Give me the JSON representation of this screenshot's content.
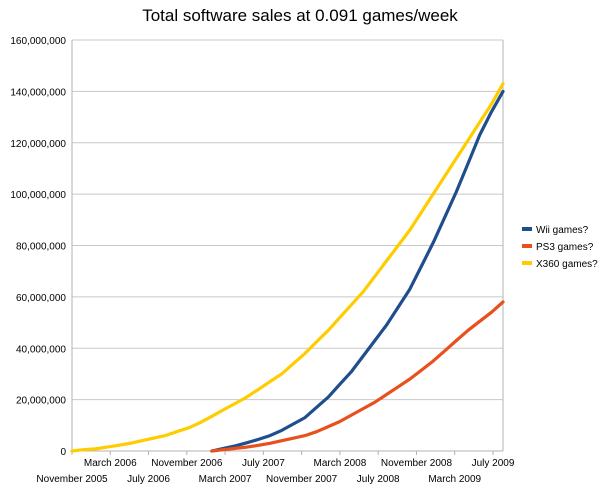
{
  "chart_data": {
    "type": "line",
    "title": "Total software sales at 0.091 games/week",
    "xlabel": "",
    "ylabel": "",
    "ylim": [
      0,
      160000000
    ],
    "y_ticks": [
      0,
      20000000,
      40000000,
      60000000,
      80000000,
      100000000,
      120000000,
      140000000,
      160000000
    ],
    "y_tick_labels": [
      "0",
      "20,000,000",
      "40,000,000",
      "60,000,000",
      "80,000,000",
      "100,000,000",
      "120,000,000",
      "140,000,000",
      "160,000,000"
    ],
    "x_tick_labels": [
      "November 2005",
      "March 2006",
      "July 2006",
      "November 2006",
      "March 2007",
      "July 2007",
      "November 2007",
      "March 2008",
      "July 2008",
      "November 2008",
      "March 2009",
      "July 2009"
    ],
    "grid": "horizontal",
    "legend_position": "right",
    "series": [
      {
        "name": "Wii games?",
        "color": "#1f4e8c",
        "points": [
          [
            12,
            0
          ],
          [
            13,
            1000000
          ],
          [
            14,
            2000000
          ],
          [
            15,
            3200000
          ],
          [
            16,
            4500000
          ],
          [
            17,
            6000000
          ],
          [
            18,
            8000000
          ],
          [
            19,
            10500000
          ],
          [
            20,
            13000000
          ],
          [
            21,
            17000000
          ],
          [
            22,
            21000000
          ],
          [
            23,
            26000000
          ],
          [
            24,
            31000000
          ],
          [
            25,
            37000000
          ],
          [
            26,
            43000000
          ],
          [
            27,
            49000000
          ],
          [
            28,
            56000000
          ],
          [
            29,
            63000000
          ],
          [
            30,
            72000000
          ],
          [
            31,
            81000000
          ],
          [
            32,
            91000000
          ],
          [
            33,
            101000000
          ],
          [
            34,
            112000000
          ],
          [
            35,
            123000000
          ],
          [
            36,
            132000000
          ],
          [
            37,
            140000000
          ]
        ]
      },
      {
        "name": "PS3 games?",
        "color": "#e8501e",
        "points": [
          [
            12,
            0
          ],
          [
            13,
            500000
          ],
          [
            14,
            1000000
          ],
          [
            15,
            1500000
          ],
          [
            16,
            2200000
          ],
          [
            17,
            3000000
          ],
          [
            18,
            4000000
          ],
          [
            19,
            5000000
          ],
          [
            20,
            6000000
          ],
          [
            21,
            7500000
          ],
          [
            22,
            9500000
          ],
          [
            23,
            11500000
          ],
          [
            24,
            14000000
          ],
          [
            25,
            16500000
          ],
          [
            26,
            19000000
          ],
          [
            27,
            22000000
          ],
          [
            28,
            25000000
          ],
          [
            29,
            28000000
          ],
          [
            30,
            31500000
          ],
          [
            31,
            35000000
          ],
          [
            32,
            39000000
          ],
          [
            33,
            43000000
          ],
          [
            34,
            47000000
          ],
          [
            35,
            50500000
          ],
          [
            36,
            54000000
          ],
          [
            37,
            58000000
          ]
        ]
      },
      {
        "name": "X360 games?",
        "color": "#ffcc00",
        "points": [
          [
            0,
            0
          ],
          [
            1,
            500000
          ],
          [
            2,
            800000
          ],
          [
            3,
            1500000
          ],
          [
            4,
            2200000
          ],
          [
            5,
            3000000
          ],
          [
            6,
            4000000
          ],
          [
            7,
            5000000
          ],
          [
            8,
            6000000
          ],
          [
            9,
            7500000
          ],
          [
            10,
            9000000
          ],
          [
            11,
            11000000
          ],
          [
            12,
            13500000
          ],
          [
            13,
            16000000
          ],
          [
            14,
            18500000
          ],
          [
            15,
            21000000
          ],
          [
            16,
            24000000
          ],
          [
            17,
            27000000
          ],
          [
            18,
            30000000
          ],
          [
            19,
            34000000
          ],
          [
            20,
            38000000
          ],
          [
            21,
            42500000
          ],
          [
            22,
            47000000
          ],
          [
            23,
            52000000
          ],
          [
            24,
            57000000
          ],
          [
            25,
            62000000
          ],
          [
            26,
            68000000
          ],
          [
            27,
            74000000
          ],
          [
            28,
            80000000
          ],
          [
            29,
            86000000
          ],
          [
            30,
            93000000
          ],
          [
            31,
            100000000
          ],
          [
            32,
            107000000
          ],
          [
            33,
            114000000
          ],
          [
            34,
            121000000
          ],
          [
            35,
            128000000
          ],
          [
            36,
            135000000
          ],
          [
            37,
            143000000
          ]
        ]
      }
    ]
  }
}
